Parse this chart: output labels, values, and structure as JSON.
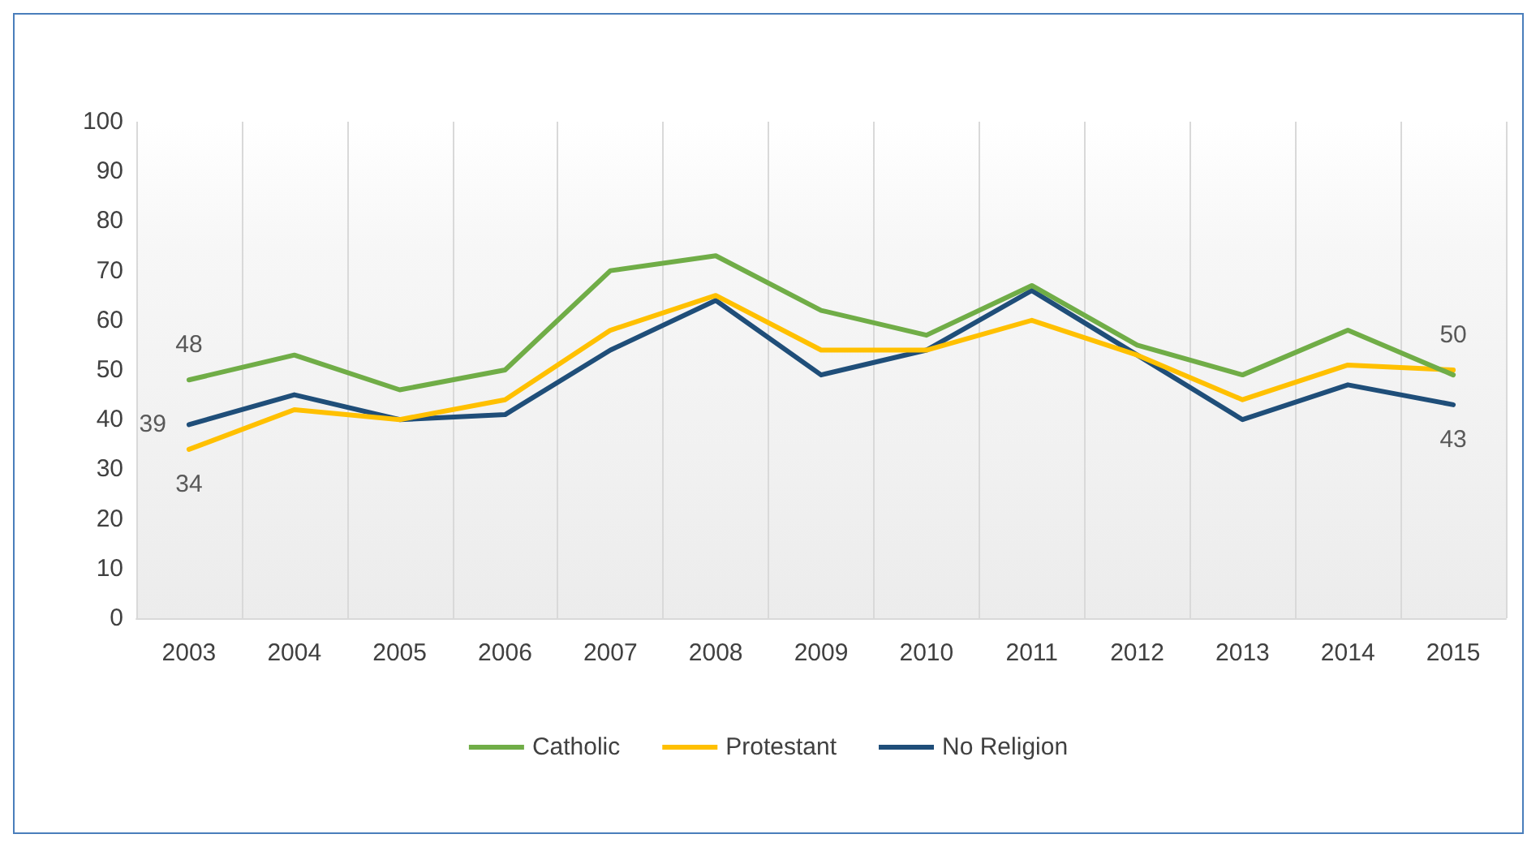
{
  "chart_data": {
    "type": "line",
    "categories": [
      "2003",
      "2004",
      "2005",
      "2006",
      "2007",
      "2008",
      "2009",
      "2010",
      "2011",
      "2012",
      "2013",
      "2014",
      "2015"
    ],
    "series": [
      {
        "name": "Catholic",
        "color": "#70ad47",
        "values": [
          48,
          53,
          46,
          50,
          70,
          73,
          62,
          57,
          67,
          55,
          49,
          58,
          49
        ],
        "value_labels": [
          "48",
          null,
          null,
          null,
          null,
          null,
          null,
          null,
          null,
          null,
          null,
          null,
          null
        ]
      },
      {
        "name": "Protestant",
        "color": "#ffc000",
        "values": [
          34,
          42,
          40,
          44,
          58,
          65,
          54,
          54,
          60,
          53,
          44,
          51,
          50
        ],
        "value_labels": [
          "34",
          null,
          null,
          null,
          null,
          null,
          null,
          null,
          null,
          null,
          null,
          null,
          "50"
        ]
      },
      {
        "name": "No Religion",
        "color": "#1f4e79",
        "values": [
          39,
          45,
          40,
          41,
          54,
          64,
          49,
          54,
          66,
          53,
          40,
          47,
          43
        ],
        "value_labels": [
          "39",
          null,
          null,
          null,
          null,
          null,
          null,
          null,
          null,
          null,
          null,
          null,
          "43"
        ]
      }
    ],
    "ylim": [
      0,
      100
    ],
    "yticks": [
      0,
      10,
      20,
      30,
      40,
      50,
      60,
      70,
      80,
      90,
      100
    ],
    "grid": "x",
    "legend": "bottom",
    "marker": "none",
    "line_style": "solid"
  }
}
